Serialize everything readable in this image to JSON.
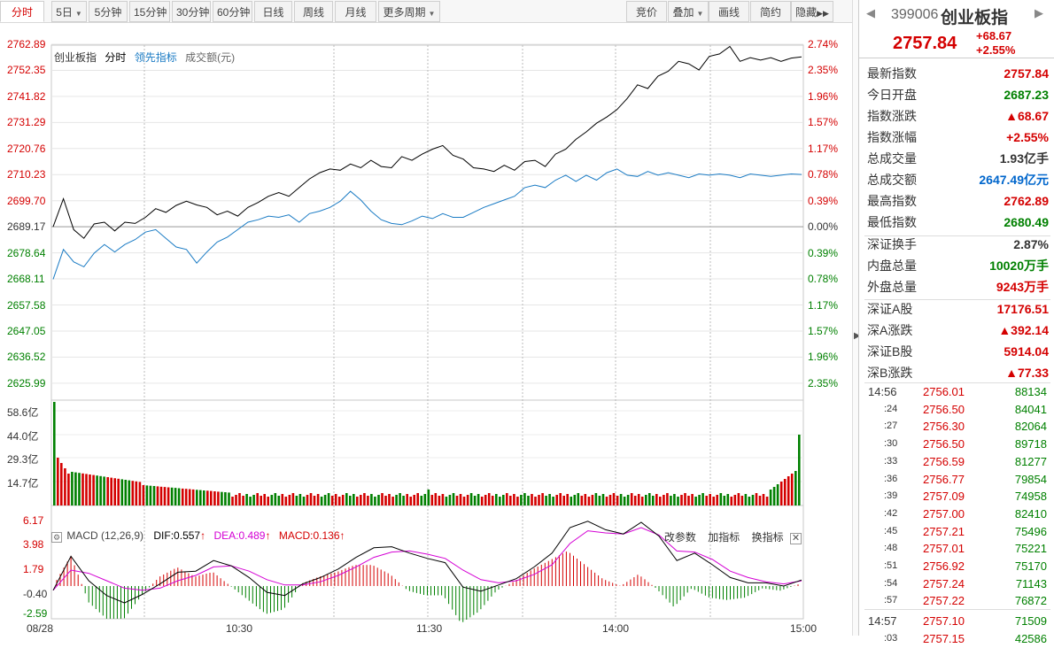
{
  "toolbar": {
    "tabs": [
      "分时",
      "5日",
      "5分钟",
      "15分钟",
      "30分钟",
      "60分钟",
      "日线",
      "周线",
      "月线",
      "更多周期"
    ],
    "right_buttons": [
      "竞价",
      "叠加",
      "画线",
      "简约",
      "隐藏"
    ]
  },
  "legend": {
    "name": "创业板指",
    "mode": "分时",
    "lead": "领先指标",
    "vol": "成交额(元)"
  },
  "price_axis": [
    "2762.89",
    "2752.35",
    "2741.82",
    "2731.29",
    "2720.76",
    "2710.23",
    "2699.70",
    "2689.17",
    "2678.64",
    "2668.11",
    "2657.58",
    "2647.05",
    "2636.52",
    "2625.99"
  ],
  "pct_axis": [
    "2.74%",
    "2.35%",
    "1.96%",
    "1.57%",
    "1.17%",
    "0.78%",
    "0.39%",
    "0.00%",
    "0.39%",
    "0.78%",
    "1.17%",
    "1.57%",
    "1.96%",
    "2.35%"
  ],
  "vol_axis": [
    "58.6亿",
    "44.0亿",
    "29.3亿",
    "14.7亿"
  ],
  "macd_axis": [
    "6.17",
    "3.98",
    "1.79",
    "-0.40",
    "-2.59"
  ],
  "macd_header": {
    "name": "MACD (12,26,9)",
    "dif": "DIF:0.557",
    "dea": "DEA:0.489",
    "macd": "MACD:0.136",
    "btn_params": "改参数",
    "btn_add": "加指标",
    "btn_switch": "换指标"
  },
  "time_axis": [
    "08/28",
    "10:30",
    "11:30",
    "14:00",
    "15:00"
  ],
  "colors": {
    "price_line": "#000000",
    "lead_line": "#1a7bc4",
    "up": "#d40000",
    "down": "#008000",
    "dea": "#d400d4"
  },
  "series_shape": {
    "price": [
      2689.2,
      2700.5,
      2688.0,
      2684.5,
      2690.3,
      2691.0,
      2687.5,
      2691.0,
      2690.5,
      2693.0,
      2696.5,
      2695.0,
      2697.8,
      2699.5,
      2698.0,
      2697.0,
      2694.0,
      2695.5,
      2693.5,
      2697.0,
      2699.0,
      2701.5,
      2703.0,
      2701.5,
      2705.0,
      2708.5,
      2711.0,
      2712.5,
      2712.0,
      2714.5,
      2713.0,
      2716.0,
      2713.5,
      2713.0,
      2717.5,
      2716.0,
      2718.5,
      2720.5,
      2722.0,
      2718.0,
      2716.5,
      2713.0,
      2712.5,
      2711.5,
      2714.0,
      2712.0,
      2715.5,
      2716.0,
      2713.5,
      2718.5,
      2720.5,
      2724.5,
      2727.5,
      2731.0,
      2733.5,
      2736.5,
      2741.0,
      2746.5,
      2745.0,
      2750.0,
      2752.0,
      2756.0,
      2755.0,
      2752.5,
      2758.0,
      2759.0,
      2762.0,
      2756.0,
      2757.5,
      2756.5,
      2757.5,
      2756.0,
      2757.3,
      2757.8
    ],
    "lead": [
      2668.0,
      2680.0,
      2675.0,
      2673.0,
      2678.5,
      2682.0,
      2679.0,
      2682.0,
      2684.0,
      2687.0,
      2688.0,
      2684.5,
      2681.0,
      2680.0,
      2674.5,
      2679.0,
      2683.0,
      2685.0,
      2688.0,
      2691.0,
      2692.0,
      2693.5,
      2693.0,
      2694.0,
      2691.0,
      2694.5,
      2695.5,
      2697.0,
      2699.5,
      2703.5,
      2700.0,
      2695.5,
      2692.0,
      2690.5,
      2690.0,
      2691.5,
      2693.5,
      2692.5,
      2694.5,
      2693.0,
      2693.0,
      2695.0,
      2697.0,
      2698.5,
      2700.0,
      2701.5,
      2705.0,
      2706.0,
      2705.0,
      2708.0,
      2710.0,
      2707.5,
      2710.0,
      2708.0,
      2711.0,
      2712.5,
      2710.0,
      2709.5,
      2711.5,
      2710.0,
      2711.0,
      2710.0,
      2709.0,
      2710.5,
      2710.0,
      2710.5,
      2710.0,
      2709.0,
      2710.5,
      2710.0,
      2709.5,
      2710.0,
      2710.5,
      2710.3
    ],
    "macd_dif": [
      -0.4,
      2.8,
      0.5,
      -0.9,
      -1.6,
      -0.8,
      0.2,
      1.3,
      1.4,
      2.4,
      1.9,
      0.8,
      -0.6,
      -0.9,
      0.2,
      0.8,
      1.6,
      2.7,
      3.6,
      3.7,
      3.1,
      2.6,
      2.2,
      -0.1,
      -0.5,
      0.1,
      0.7,
      1.8,
      3.1,
      5.5,
      6.1,
      5.3,
      4.9,
      6.0,
      4.7,
      2.4,
      3.1,
      2.0,
      0.8,
      0.3,
      0.3,
      0.0,
      0.56
    ],
    "macd_dea": [
      -0.4,
      1.5,
      1.2,
      0.5,
      -0.2,
      -0.4,
      -0.2,
      0.5,
      1.0,
      1.8,
      1.9,
      1.4,
      0.6,
      0.1,
      0.1,
      0.4,
      1.0,
      1.8,
      2.7,
      3.2,
      3.3,
      3.0,
      2.6,
      1.5,
      0.6,
      0.3,
      0.5,
      1.1,
      2.0,
      4.0,
      5.2,
      5.0,
      4.9,
      5.5,
      4.8,
      3.3,
      3.2,
      2.5,
      1.4,
      0.8,
      0.4,
      0.2,
      0.49
    ]
  },
  "quote": {
    "code": "399006",
    "name": "创业板指",
    "price": "2757.84",
    "change": "+68.67",
    "pct": "+2.55%"
  },
  "stats": [
    {
      "k": "最新指数",
      "v": "2757.84",
      "c": "red"
    },
    {
      "k": "今日开盘",
      "v": "2687.23",
      "c": "green"
    },
    {
      "k": "指数涨跌",
      "v": "▲68.67",
      "c": "red"
    },
    {
      "k": "指数涨幅",
      "v": "+2.55%",
      "c": "red"
    },
    {
      "k": "总成交量",
      "v": "1.93亿手",
      "c": ""
    },
    {
      "k": "总成交额",
      "v": "2647.49亿元",
      "c": "blue"
    },
    {
      "k": "最高指数",
      "v": "2762.89",
      "c": "red"
    },
    {
      "k": "最低指数",
      "v": "2680.49",
      "c": "green"
    },
    {
      "k": "深证换手",
      "v": "2.87%",
      "c": ""
    },
    {
      "k": "内盘总量",
      "v": "10020万手",
      "c": "green"
    },
    {
      "k": "外盘总量",
      "v": "9243万手",
      "c": "red"
    },
    {
      "k": "深证A股",
      "v": "17176.51",
      "c": "red"
    },
    {
      "k": "深A涨跌",
      "v": "▲392.14",
      "c": "red"
    },
    {
      "k": "深证B股",
      "v": "5914.04",
      "c": "red"
    },
    {
      "k": "深B涨跌",
      "v": "▲77.33",
      "c": "red"
    }
  ],
  "ticks": [
    {
      "t": "14:56",
      "p": "2756.01",
      "q": "88134"
    },
    {
      "t": ":24",
      "p": "2756.50",
      "q": "84041"
    },
    {
      "t": ":27",
      "p": "2756.30",
      "q": "82064"
    },
    {
      "t": ":30",
      "p": "2756.50",
      "q": "89718"
    },
    {
      "t": ":33",
      "p": "2756.59",
      "q": "81277"
    },
    {
      "t": ":36",
      "p": "2756.77",
      "q": "79854"
    },
    {
      "t": ":39",
      "p": "2757.09",
      "q": "74958"
    },
    {
      "t": ":42",
      "p": "2757.00",
      "q": "82410"
    },
    {
      "t": ":45",
      "p": "2757.21",
      "q": "75496"
    },
    {
      "t": ":48",
      "p": "2757.01",
      "q": "75221"
    },
    {
      "t": ":51",
      "p": "2756.92",
      "q": "75170"
    },
    {
      "t": ":54",
      "p": "2757.24",
      "q": "71143"
    },
    {
      "t": ":57",
      "p": "2757.22",
      "q": "76872"
    },
    {
      "t": "14:57",
      "p": "2757.10",
      "q": "71509"
    },
    {
      "t": ":03",
      "p": "2757.15",
      "q": "42586"
    }
  ]
}
